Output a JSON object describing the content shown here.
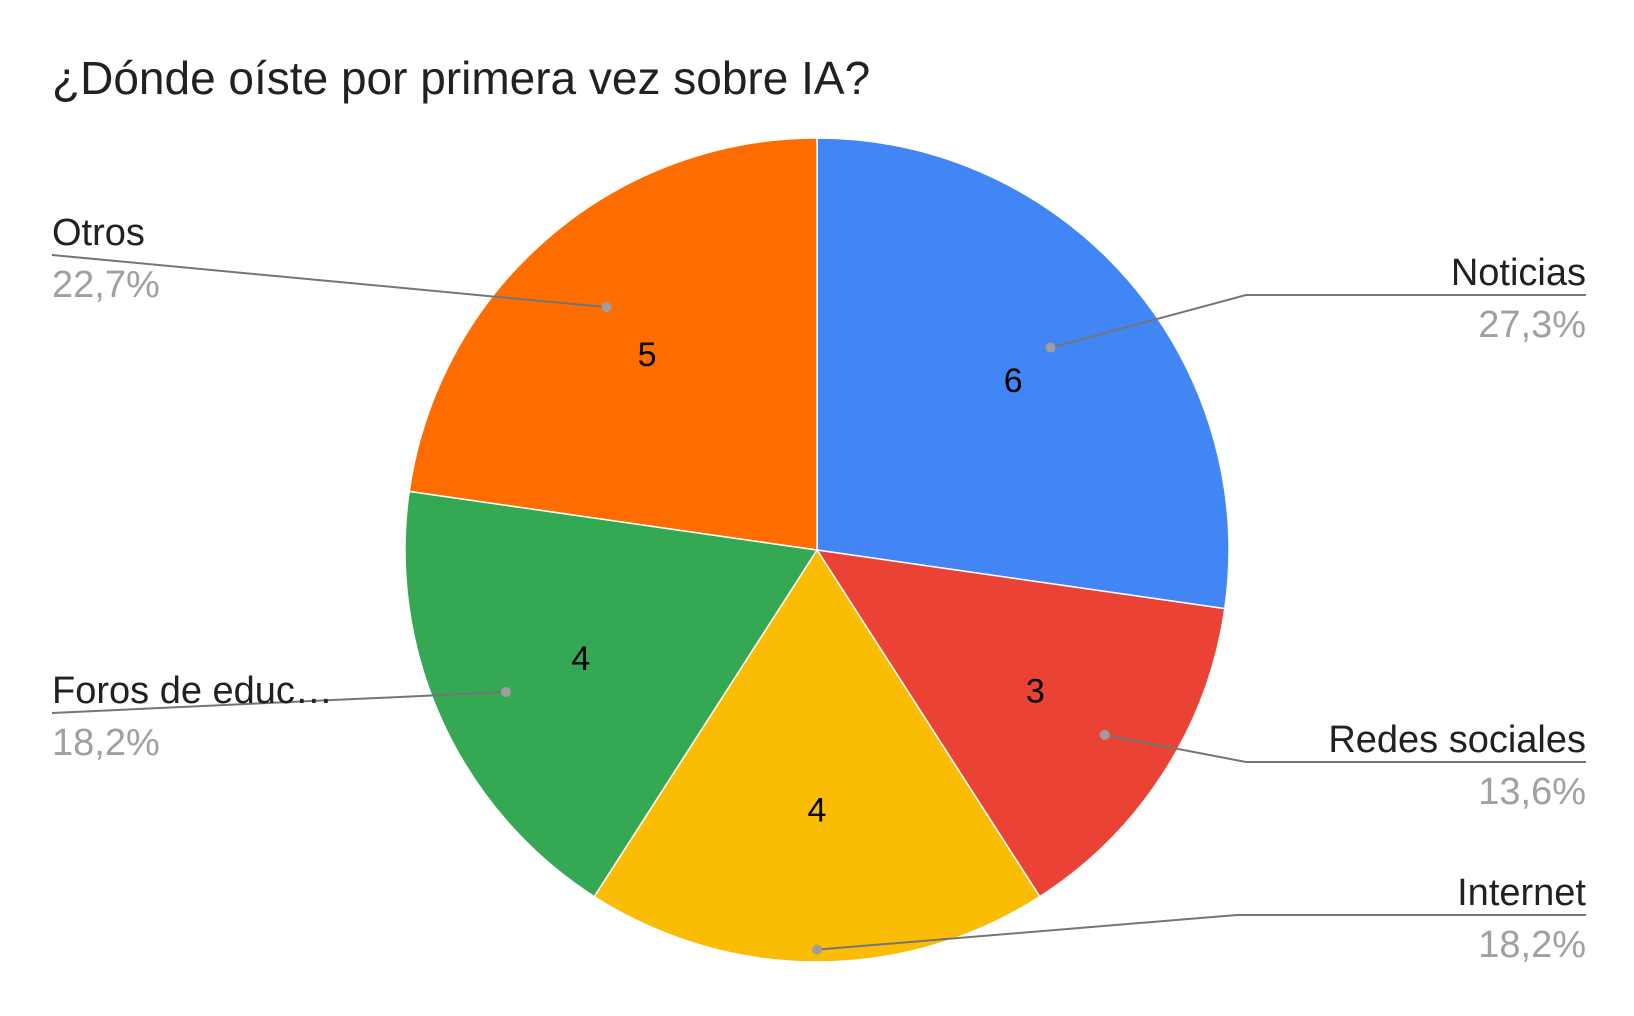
{
  "chart_data": {
    "type": "pie",
    "title": "¿Dónde oíste por primera vez sobre IA?",
    "slices": [
      {
        "label": "Noticias",
        "value": 6,
        "percent": "27,3%",
        "color": "#4285f4"
      },
      {
        "label": "Redes sociales",
        "value": 3,
        "percent": "13,6%",
        "color": "#ea4335"
      },
      {
        "label": "Internet",
        "value": 4,
        "percent": "18,2%",
        "color": "#fbbc04"
      },
      {
        "label": "Foros de educ…",
        "value": 4,
        "percent": "18,2%",
        "color": "#34a853"
      },
      {
        "label": "Otros",
        "value": 5,
        "percent": "22,7%",
        "color": "#ff6d01"
      }
    ],
    "legend": "none"
  }
}
